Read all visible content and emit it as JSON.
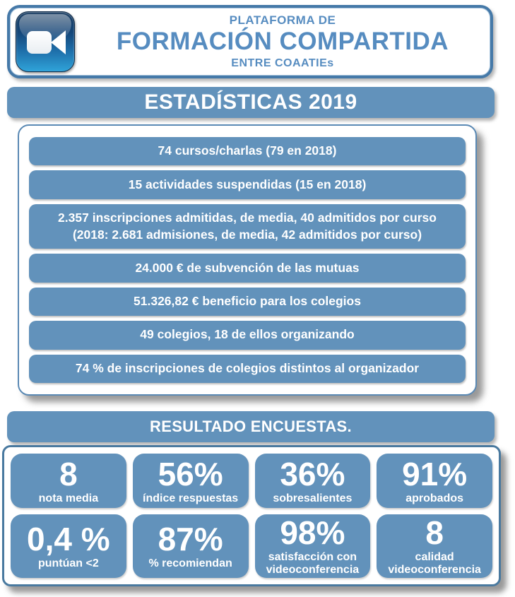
{
  "header": {
    "icon": "video-camera-icon",
    "supertitle": "PLATAFORMA DE",
    "title": "FORMACIÓN COMPARTIDA",
    "subtitle": "ENTRE COAATIEs"
  },
  "section_stats": {
    "title": "ESTADÍSTICAS 2019",
    "items": [
      {
        "lines": [
          "74 cursos/charlas (79 en 2018)"
        ]
      },
      {
        "lines": [
          "15 actividades suspendidas (15 en 2018)"
        ]
      },
      {
        "lines": [
          "2.357 inscripciones admitidas, de media, 40 admitidos por curso",
          "(2018: 2.681 admisiones, de media, 42 admitidos por curso)"
        ]
      },
      {
        "lines": [
          "24.000 € de subvención de las mutuas"
        ]
      },
      {
        "lines": [
          "51.326,82 € beneficio para los colegios"
        ]
      },
      {
        "lines": [
          "49 colegios, 18 de ellos organizando"
        ]
      },
      {
        "lines": [
          "74 % de inscripciones de colegios distintos al organizador"
        ]
      }
    ]
  },
  "section_surveys": {
    "title": "RESULTADO ENCUESTAS.",
    "cards": [
      {
        "value": "8",
        "label": "nota media"
      },
      {
        "value": "56%",
        "label": "índice respuestas"
      },
      {
        "value": "36%",
        "label": "sobresalientes"
      },
      {
        "value": "91%",
        "label": "aprobados"
      },
      {
        "value": "0,4 %",
        "label": "puntúan <2"
      },
      {
        "value": "87%",
        "label": "% recomiendan"
      },
      {
        "value": "98%",
        "label": "satisfacción con videoconferencia"
      },
      {
        "value": "8",
        "label": "calidad videoconferencia"
      }
    ]
  },
  "colors": {
    "bar_blue": "#6292bb",
    "title_blue": "#568cc0",
    "border_blue": "#4579a8",
    "panel_border_blue": "#5a89b4",
    "text_on_blue": "#ffffff"
  }
}
